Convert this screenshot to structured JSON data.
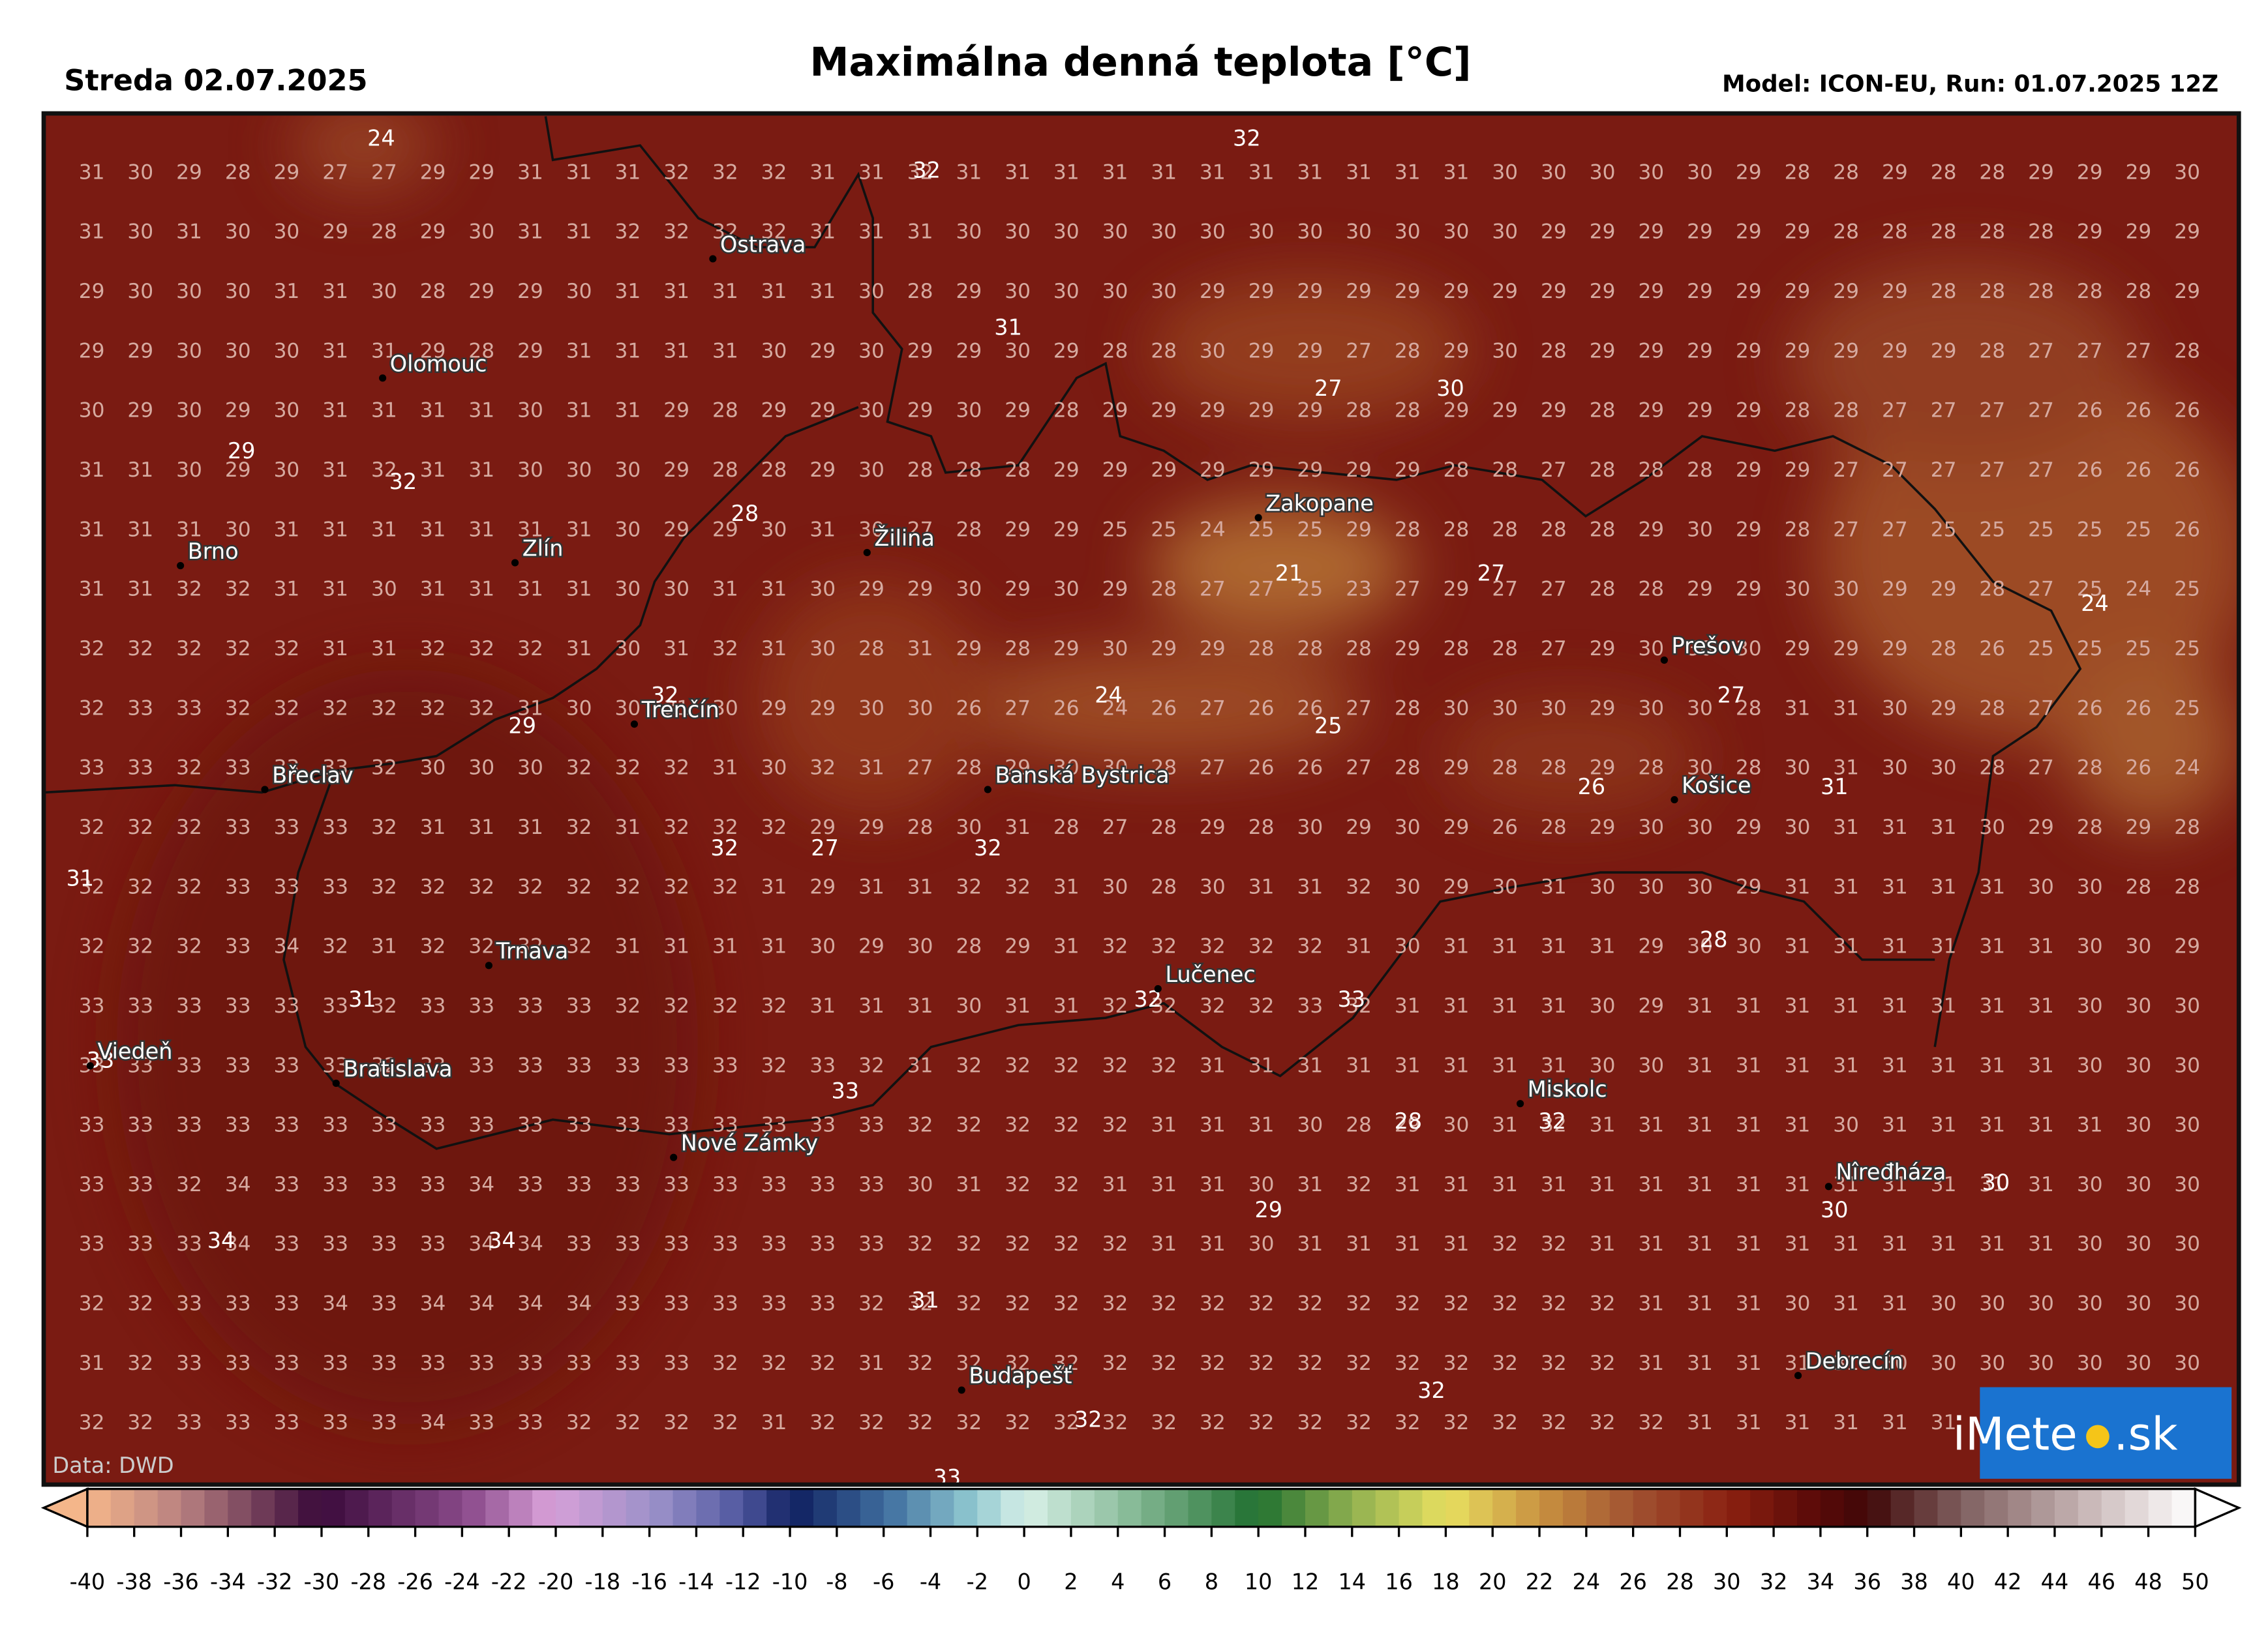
{
  "header": {
    "date": "Streda 02.07.2025",
    "title": "Maximálna denná teplota [°C]",
    "model": "Model: ICON-EU, Run: 01.07.2025 12Z"
  },
  "source": "Data: DWD",
  "logo": {
    "left": "iMete",
    "right": ".sk"
  },
  "grid": {
    "rows": [
      [
        31,
        30,
        29,
        28,
        29,
        27,
        27,
        29,
        29,
        31,
        31,
        31,
        32,
        32,
        32,
        31,
        31,
        32,
        31,
        31,
        31,
        31,
        31,
        31,
        31,
        31,
        31,
        31,
        31,
        30,
        30,
        30,
        30,
        30,
        29,
        28,
        28,
        29,
        28,
        28,
        29,
        29,
        29,
        30
      ],
      [
        31,
        30,
        31,
        30,
        30,
        29,
        28,
        29,
        30,
        31,
        31,
        32,
        32,
        32,
        32,
        31,
        31,
        31,
        30,
        30,
        30,
        30,
        30,
        30,
        30,
        30,
        30,
        30,
        30,
        30,
        29,
        29,
        29,
        29,
        29,
        29,
        28,
        28,
        28,
        28,
        28,
        29,
        29,
        29
      ],
      [
        29,
        30,
        30,
        30,
        31,
        31,
        30,
        28,
        29,
        29,
        30,
        31,
        31,
        31,
        31,
        31,
        30,
        28,
        29,
        30,
        30,
        30,
        30,
        29,
        29,
        29,
        29,
        29,
        29,
        29,
        29,
        29,
        29,
        29,
        29,
        29,
        29,
        29,
        28,
        28,
        28,
        28,
        28,
        29
      ],
      [
        29,
        29,
        30,
        30,
        30,
        31,
        31,
        29,
        28,
        29,
        31,
        31,
        31,
        31,
        30,
        29,
        30,
        29,
        29,
        30,
        29,
        28,
        28,
        30,
        29,
        29,
        27,
        28,
        29,
        30,
        28,
        29,
        29,
        29,
        29,
        29,
        29,
        29,
        29,
        28,
        27,
        27,
        27,
        28
      ],
      [
        30,
        29,
        30,
        29,
        30,
        31,
        31,
        31,
        31,
        30,
        31,
        31,
        29,
        28,
        29,
        29,
        30,
        29,
        30,
        29,
        28,
        29,
        29,
        29,
        29,
        29,
        28,
        28,
        29,
        29,
        29,
        28,
        29,
        29,
        29,
        28,
        28,
        27,
        27,
        27,
        27,
        26,
        26,
        26
      ],
      [
        31,
        31,
        30,
        29,
        30,
        31,
        32,
        31,
        31,
        30,
        30,
        30,
        29,
        28,
        28,
        29,
        30,
        28,
        28,
        28,
        29,
        29,
        29,
        29,
        29,
        29,
        29,
        29,
        28,
        28,
        27,
        28,
        28,
        28,
        29,
        29,
        27,
        27,
        27,
        27,
        27,
        26,
        26,
        26
      ],
      [
        31,
        31,
        31,
        30,
        31,
        31,
        31,
        31,
        31,
        31,
        31,
        30,
        29,
        29,
        30,
        31,
        30,
        27,
        28,
        29,
        29,
        25,
        25,
        24,
        25,
        25,
        29,
        28,
        28,
        28,
        28,
        28,
        29,
        30,
        29,
        28,
        27,
        27,
        25,
        25,
        25,
        25,
        25,
        26
      ],
      [
        31,
        31,
        32,
        32,
        31,
        31,
        30,
        31,
        31,
        31,
        31,
        30,
        30,
        31,
        31,
        30,
        29,
        29,
        30,
        29,
        30,
        29,
        28,
        27,
        27,
        25,
        23,
        27,
        29,
        27,
        27,
        28,
        28,
        29,
        29,
        30,
        30,
        29,
        29,
        28,
        27,
        25,
        24,
        25
      ],
      [
        32,
        32,
        32,
        32,
        32,
        31,
        31,
        32,
        32,
        32,
        31,
        30,
        31,
        32,
        31,
        30,
        28,
        31,
        29,
        28,
        29,
        30,
        29,
        29,
        28,
        28,
        28,
        29,
        28,
        28,
        27,
        29,
        30,
        30,
        30,
        29,
        29,
        29,
        28,
        26,
        25,
        25,
        25,
        25
      ],
      [
        32,
        33,
        33,
        32,
        32,
        32,
        32,
        32,
        32,
        31,
        30,
        30,
        31,
        30,
        29,
        29,
        30,
        30,
        26,
        27,
        26,
        24,
        26,
        27,
        26,
        26,
        27,
        28,
        30,
        30,
        30,
        29,
        30,
        30,
        28,
        31,
        31,
        30,
        29,
        28,
        27,
        26,
        26,
        25
      ],
      [
        33,
        33,
        32,
        33,
        33,
        33,
        32,
        30,
        30,
        30,
        32,
        32,
        32,
        31,
        30,
        32,
        31,
        27,
        28,
        29,
        30,
        30,
        28,
        27,
        26,
        26,
        27,
        28,
        29,
        28,
        28,
        29,
        28,
        30,
        28,
        30,
        31,
        30,
        30,
        28,
        27,
        28,
        26,
        24
      ],
      [
        32,
        32,
        32,
        33,
        33,
        33,
        32,
        31,
        31,
        31,
        32,
        31,
        32,
        32,
        32,
        29,
        29,
        28,
        30,
        31,
        28,
        27,
        28,
        29,
        28,
        30,
        29,
        30,
        29,
        26,
        28,
        29,
        30,
        30,
        29,
        30,
        31,
        31,
        31,
        30,
        29,
        28,
        29,
        28
      ],
      [
        32,
        32,
        32,
        33,
        33,
        33,
        32,
        32,
        32,
        32,
        32,
        32,
        32,
        32,
        31,
        29,
        31,
        31,
        32,
        32,
        31,
        30,
        28,
        30,
        31,
        31,
        32,
        30,
        29,
        30,
        31,
        30,
        30,
        30,
        29,
        31,
        31,
        31,
        31,
        31,
        30,
        30,
        28,
        28
      ],
      [
        32,
        32,
        32,
        33,
        34,
        32,
        31,
        32,
        32,
        32,
        32,
        31,
        31,
        31,
        31,
        30,
        29,
        30,
        28,
        29,
        31,
        32,
        32,
        32,
        32,
        32,
        31,
        30,
        31,
        31,
        31,
        31,
        29,
        30,
        30,
        31,
        31,
        31,
        31,
        31,
        31,
        30,
        30,
        29
      ],
      [
        33,
        33,
        33,
        33,
        33,
        33,
        32,
        33,
        33,
        33,
        33,
        32,
        32,
        32,
        32,
        31,
        31,
        31,
        30,
        31,
        31,
        32,
        32,
        32,
        32,
        33,
        32,
        31,
        31,
        31,
        31,
        30,
        29,
        31,
        31,
        31,
        31,
        31,
        31,
        31,
        31,
        30,
        30,
        30
      ],
      [
        33,
        33,
        33,
        33,
        33,
        33,
        32,
        33,
        33,
        33,
        33,
        33,
        33,
        33,
        32,
        33,
        32,
        31,
        32,
        32,
        32,
        32,
        32,
        31,
        31,
        31,
        31,
        31,
        31,
        31,
        31,
        30,
        30,
        31,
        31,
        31,
        31,
        31,
        31,
        31,
        31,
        30,
        30,
        30
      ],
      [
        33,
        33,
        33,
        33,
        33,
        33,
        33,
        33,
        33,
        33,
        33,
        33,
        33,
        33,
        33,
        33,
        33,
        32,
        32,
        32,
        32,
        32,
        31,
        31,
        31,
        30,
        28,
        29,
        30,
        31,
        32,
        31,
        31,
        31,
        31,
        31,
        30,
        31,
        31,
        31,
        31,
        31,
        30,
        30
      ],
      [
        33,
        33,
        32,
        34,
        33,
        33,
        33,
        33,
        34,
        33,
        33,
        33,
        33,
        33,
        33,
        33,
        33,
        30,
        31,
        32,
        32,
        31,
        31,
        31,
        30,
        31,
        32,
        31,
        31,
        31,
        31,
        31,
        31,
        31,
        31,
        31,
        31,
        31,
        31,
        31,
        31,
        30,
        30,
        30
      ],
      [
        33,
        33,
        33,
        34,
        33,
        33,
        33,
        33,
        34,
        34,
        33,
        33,
        33,
        33,
        33,
        33,
        33,
        32,
        32,
        32,
        32,
        32,
        31,
        31,
        30,
        31,
        31,
        31,
        31,
        32,
        32,
        31,
        31,
        31,
        31,
        31,
        31,
        31,
        31,
        31,
        31,
        30,
        30,
        30
      ],
      [
        32,
        32,
        33,
        33,
        33,
        34,
        33,
        34,
        34,
        34,
        34,
        33,
        33,
        33,
        33,
        33,
        32,
        32,
        32,
        32,
        32,
        32,
        32,
        32,
        32,
        32,
        32,
        32,
        32,
        32,
        32,
        32,
        31,
        31,
        31,
        30,
        31,
        31,
        30,
        30,
        30,
        30,
        30,
        30
      ],
      [
        31,
        32,
        33,
        33,
        33,
        33,
        33,
        33,
        33,
        33,
        33,
        33,
        33,
        32,
        32,
        32,
        31,
        32,
        32,
        32,
        32,
        32,
        32,
        32,
        32,
        32,
        32,
        32,
        32,
        32,
        32,
        32,
        31,
        31,
        31,
        31,
        31,
        30,
        30,
        30,
        30,
        30,
        30,
        30
      ],
      [
        32,
        32,
        33,
        33,
        33,
        33,
        33,
        34,
        33,
        33,
        32,
        32,
        32,
        32,
        31,
        32,
        32,
        32,
        32,
        32,
        32,
        32,
        32,
        32,
        32,
        32,
        32,
        32,
        32,
        32,
        32,
        32,
        32,
        31,
        31,
        31,
        31,
        31,
        31,
        31
      ]
    ]
  },
  "extremes": [
    24,
    32,
    32,
    31,
    27,
    30,
    29,
    32,
    28,
    21,
    27,
    24,
    32,
    29,
    24,
    25,
    27,
    26,
    31,
    32,
    27,
    32,
    31,
    28,
    31,
    32,
    33,
    33,
    33,
    32,
    28,
    30,
    30,
    29,
    34,
    34,
    31,
    32,
    32,
    33
  ],
  "cities": [
    "Ostrava",
    "Olomouc",
    "Brno",
    "Zlín",
    "Žilina",
    "Zakopane",
    "Prešov",
    "Trenčín",
    "Břeclav",
    "Banská Bystrica",
    "Košice",
    "Trnava",
    "Lučenec",
    "Viedeň",
    "Bratislava",
    "Miskolc",
    "Nové Zámky",
    "Nîređháza",
    "Budapešť",
    "Debrecín"
  ],
  "colorbar": {
    "ticks": [
      -40,
      -38,
      -36,
      -34,
      -32,
      -30,
      -28,
      -26,
      -24,
      -22,
      -20,
      -18,
      -16,
      -14,
      -12,
      -10,
      -8,
      -6,
      -4,
      -2,
      0,
      2,
      4,
      6,
      8,
      10,
      12,
      14,
      16,
      18,
      20,
      22,
      24,
      26,
      28,
      30,
      32,
      34,
      36,
      38,
      40,
      42,
      44,
      46,
      48,
      50
    ]
  }
}
